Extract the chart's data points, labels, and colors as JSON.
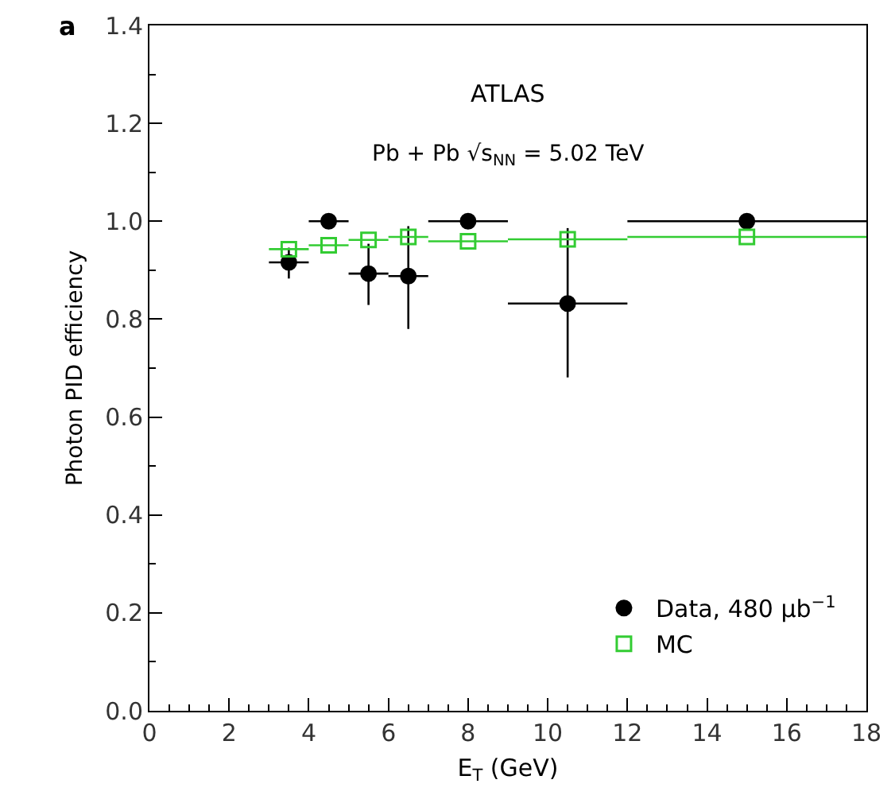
{
  "chart_data": {
    "type": "scatter",
    "xlabel": "E$_{T}$ (GeV)",
    "ylabel": "Photon PID efficiency",
    "annotations": [
      "a",
      "ATLAS",
      "Pb + Pb √s$_{NN}$ = 5.02 TeV"
    ],
    "series": [
      {
        "name": "Data, 480 μb$^{−1}$",
        "color": "#000000",
        "marker": "circle",
        "x": [
          3.5,
          4.5,
          5.5,
          6.5,
          8,
          10.5,
          15
        ],
        "values": [
          0.916,
          1.0,
          0.893,
          0.888,
          1.0,
          0.832,
          1.0
        ],
        "errors": [
          [
            0.883,
            0.946
          ],
          null,
          [
            0.829,
            0.954
          ],
          [
            0.78,
            0.99
          ],
          null,
          [
            0.681,
            0.986
          ],
          null
        ],
        "xerrors": [
          [
            3,
            4
          ],
          [
            4,
            5
          ],
          [
            5,
            6
          ],
          [
            6,
            7
          ],
          [
            7,
            9
          ],
          [
            9,
            12
          ],
          [
            12,
            18
          ]
        ]
      },
      {
        "name": "MC",
        "color": "#33cc33",
        "marker": "square",
        "x": [
          3.5,
          4.5,
          5.5,
          6.5,
          8,
          10.5,
          15
        ],
        "values": [
          0.943,
          0.951,
          0.962,
          0.968,
          0.959,
          0.963,
          0.968
        ],
        "xerrors": [
          [
            3,
            4
          ],
          [
            4,
            5
          ],
          [
            5,
            6
          ],
          [
            6,
            7
          ],
          [
            7,
            9
          ],
          [
            9,
            12
          ],
          [
            12,
            18
          ]
        ]
      }
    ],
    "xlim": [
      0,
      18
    ],
    "xticks": [
      0,
      2,
      4,
      6,
      8,
      10,
      12,
      14,
      16,
      18
    ],
    "ylim": [
      0,
      1.4
    ],
    "yticks": [
      {
        "value": 0,
        "label": "0.0"
      },
      {
        "value": 0.2,
        "label": "0.2"
      },
      {
        "value": 0.4,
        "label": "0.4"
      },
      {
        "value": 0.6,
        "label": "0.6"
      },
      {
        "value": 0.8,
        "label": "0.8"
      },
      {
        "value": 1,
        "label": "1.0"
      },
      {
        "value": 1.2,
        "label": "1.2"
      },
      {
        "value": 1.4,
        "label": "1.4"
      }
    ],
    "grid": false,
    "legend": "bottom right"
  }
}
